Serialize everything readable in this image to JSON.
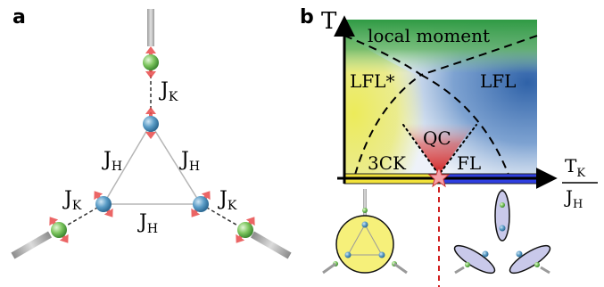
{
  "panel_a": {
    "label": "a",
    "couplings": {
      "jk_top": "J",
      "jk_top_sub": "K",
      "jh_left": "J",
      "jh_left_sub": "H",
      "jh_right": "J",
      "jh_right_sub": "H",
      "jk_left": "J",
      "jk_left_sub": "K",
      "jh_bottom": "J",
      "jh_bottom_sub": "H",
      "jk_right": "J",
      "jk_right_sub": "K"
    }
  },
  "panel_b": {
    "label": "b",
    "y_axis_label": "T",
    "x_axis_label_num": "T",
    "x_axis_label_num_sub": "K",
    "x_axis_label_den": "J",
    "x_axis_label_den_sub": "H",
    "regions": {
      "local_moment": "local moment",
      "lfl_star": "LFL*",
      "lfl": "LFL",
      "qc": "QC",
      "three_ck": "3CK",
      "fl": "FL"
    },
    "colors": {
      "local_moment": "#3aa04a",
      "lfl_star": "#e6e24a",
      "lfl": "#3f6fb0",
      "qc": "#cf2a2a",
      "three_ck_bar": "#f2e23a",
      "fl_bar": "#2f3fe0",
      "critical_star": "#f4a0a8",
      "critical_line": "#d12020"
    }
  }
}
